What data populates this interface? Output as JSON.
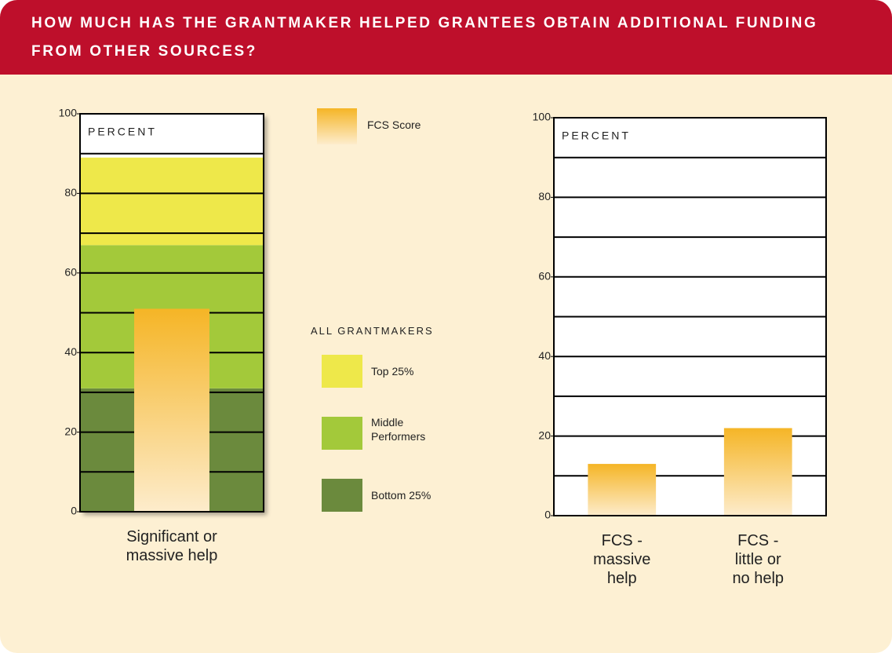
{
  "title": "HOW MUCH HAS THE GRANTMAKER HELPED GRANTEES OBTAIN ADDITIONAL FUNDING FROM OTHER SOURCES?",
  "chart_data": [
    {
      "type": "benchmark",
      "ylabel": "PERCENT",
      "categories": [
        "Significant or massive help"
      ],
      "ylim": [
        0,
        100
      ],
      "yticks": [
        0,
        20,
        40,
        60,
        80,
        100
      ],
      "gridlines": [
        0,
        10,
        20,
        30,
        40,
        50,
        60,
        70,
        80,
        90,
        100
      ],
      "legend_title": "ALL GRANTMAKERS",
      "bands": [
        {
          "name": "Bottom 25%",
          "color": "#6b8a3d",
          "values": [
            31
          ]
        },
        {
          "name": "Middle Performers",
          "color": "#a3c93a",
          "values": [
            36
          ]
        },
        {
          "name": "Top 25%",
          "color": "#eee84a",
          "values": [
            22
          ]
        }
      ],
      "series": [
        {
          "name": "FCS Score",
          "color": "#f5b526",
          "values": [
            51
          ]
        }
      ]
    },
    {
      "type": "bar",
      "ylabel": "PERCENT",
      "categories": [
        "FCS - massive help",
        "FCS - little or no help"
      ],
      "ylim": [
        0,
        100
      ],
      "yticks": [
        0,
        20,
        40,
        60,
        80,
        100
      ],
      "gridlines": [
        0,
        10,
        20,
        30,
        40,
        50,
        60,
        70,
        80,
        90,
        100
      ],
      "series": [
        {
          "name": "FCS Score",
          "color": "#f5b526",
          "values": [
            13,
            22
          ]
        }
      ]
    }
  ]
}
